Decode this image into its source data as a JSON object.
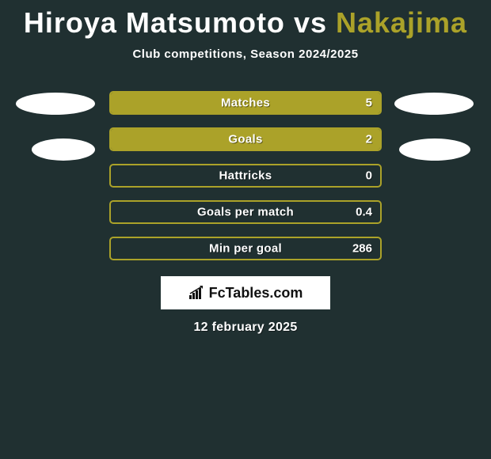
{
  "title": {
    "part1": "Hiroya Matsumoto",
    "part1_color": "#ffffff",
    "vs": " vs ",
    "part2": "Nakajima",
    "part2_color": "#aba229"
  },
  "subtitle": "Club competitions, Season 2024/2025",
  "background_color": "#203031",
  "bar_colors": {
    "border": "#aba229",
    "fill": "#aba229"
  },
  "stats": [
    {
      "label": "Matches",
      "value": "5",
      "fill_pct": 100
    },
    {
      "label": "Goals",
      "value": "2",
      "fill_pct": 100
    },
    {
      "label": "Hattricks",
      "value": "0",
      "fill_pct": 0
    },
    {
      "label": "Goals per match",
      "value": "0.4",
      "fill_pct": 0
    },
    {
      "label": "Min per goal",
      "value": "286",
      "fill_pct": 0
    }
  ],
  "brand": {
    "text": "FcTables.com",
    "icon": "chart-up-icon"
  },
  "date": "12 february 2025",
  "ellipse_color": "#ffffff"
}
